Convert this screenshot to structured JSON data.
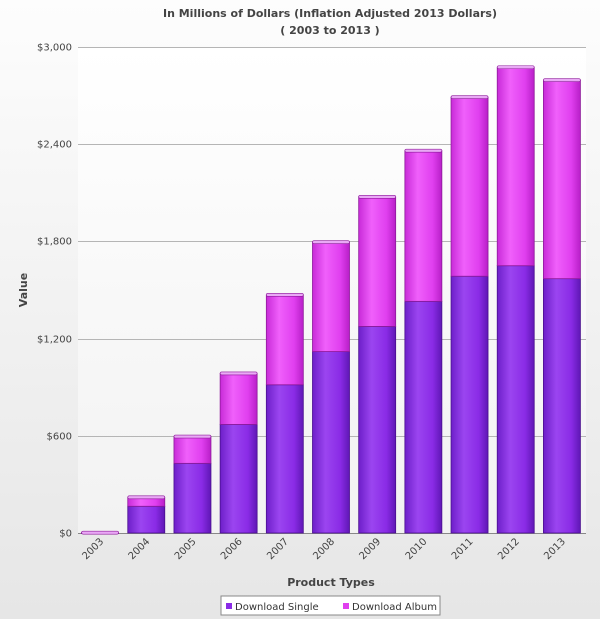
{
  "chart_data": {
    "type": "bar",
    "stacked": true,
    "title": "In Millions of Dollars (Inflation Adjusted 2013 Dollars)",
    "subtitle": "( 2003 to 2013 )",
    "xlabel": "Product Types",
    "ylabel": "Value",
    "ylim": [
      0,
      3000
    ],
    "yticks": [
      0,
      600,
      1200,
      1800,
      2400,
      3000
    ],
    "ytick_labels": [
      "$0",
      "$600",
      "$1,200",
      "$1,800",
      "$2,400",
      "$3,000"
    ],
    "categories": [
      "2003",
      "2004",
      "2005",
      "2006",
      "2007",
      "2008",
      "2009",
      "2010",
      "2011",
      "2012",
      "2013"
    ],
    "series": [
      {
        "name": "Download Single",
        "color": "#8a2be6",
        "values": [
          1,
          165,
          430,
          670,
          915,
          1120,
          1275,
          1430,
          1585,
          1650,
          1570
        ]
      },
      {
        "name": "Download Album",
        "color": "#e03fef",
        "values": [
          1,
          55,
          165,
          315,
          555,
          675,
          800,
          930,
          1105,
          1225,
          1225
        ]
      }
    ],
    "legend_position": "bottom-center",
    "grid": true
  }
}
